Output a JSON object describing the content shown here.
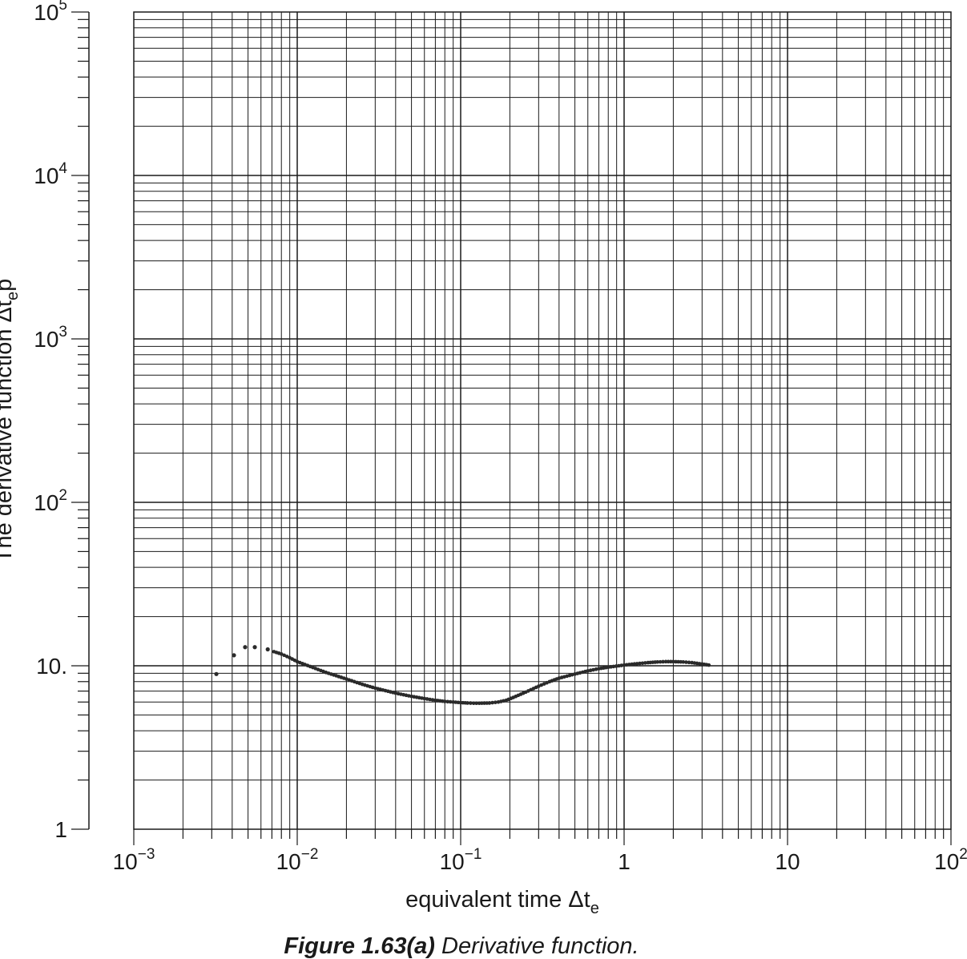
{
  "chart_data": {
    "type": "scatter",
    "title": "",
    "xlabel": "equivalent time Δt",
    "xlabel_subscript": "e",
    "ylabel": "The derivative function Δt",
    "ylabel_subscript": "e",
    "ylabel_suffix": "p",
    "xscale": "log",
    "yscale": "log",
    "xlim": [
      0.001,
      100
    ],
    "ylim": [
      1,
      100000
    ],
    "grid": true,
    "x_ticks": [
      {
        "value": 0.001,
        "base": "10",
        "exp": "−3"
      },
      {
        "value": 0.01,
        "base": "10",
        "exp": "−2"
      },
      {
        "value": 0.1,
        "base": "10",
        "exp": "−1"
      },
      {
        "value": 1,
        "base": "1",
        "exp": ""
      },
      {
        "value": 10,
        "base": "10",
        "exp": ""
      },
      {
        "value": 100,
        "base": "10",
        "exp": "2"
      }
    ],
    "y_ticks": [
      {
        "value": 1,
        "base": "1",
        "exp": ""
      },
      {
        "value": 10,
        "base": "10.",
        "exp": ""
      },
      {
        "value": 100,
        "base": "10",
        "exp": "2"
      },
      {
        "value": 1000,
        "base": "10",
        "exp": "3"
      },
      {
        "value": 10000,
        "base": "10",
        "exp": "4"
      },
      {
        "value": 100000,
        "base": "10",
        "exp": "5"
      }
    ],
    "series": [
      {
        "marker_color": "#2a2a2a",
        "x": [
          0.0032,
          0.0041,
          0.0048,
          0.0055,
          0.0066,
          0.0072,
          0.008,
          0.009,
          0.01,
          0.012,
          0.015,
          0.02,
          0.025,
          0.03,
          0.04,
          0.05,
          0.06,
          0.07,
          0.08,
          0.09,
          0.1,
          0.11,
          0.12,
          0.13,
          0.15,
          0.17,
          0.19,
          0.21,
          0.25,
          0.3,
          0.35,
          0.4,
          0.5,
          0.6,
          0.7,
          0.8,
          1.0,
          1.2,
          1.4,
          1.6,
          1.8,
          2.0,
          2.3,
          2.6,
          3.0,
          3.3
        ],
        "y": [
          8.9,
          11.6,
          13.0,
          13.0,
          12.6,
          12.2,
          11.8,
          11.2,
          10.6,
          9.9,
          9.1,
          8.3,
          7.7,
          7.3,
          6.8,
          6.5,
          6.3,
          6.15,
          6.05,
          6.0,
          5.95,
          5.92,
          5.9,
          5.9,
          5.92,
          6.0,
          6.15,
          6.4,
          6.9,
          7.5,
          8.0,
          8.4,
          8.9,
          9.3,
          9.6,
          9.8,
          10.1,
          10.3,
          10.45,
          10.55,
          10.6,
          10.6,
          10.55,
          10.45,
          10.25,
          10.1
        ]
      }
    ]
  },
  "caption": {
    "figure_label": "Figure 1.63(a)",
    "separator": " ",
    "description": "Derivative function."
  }
}
